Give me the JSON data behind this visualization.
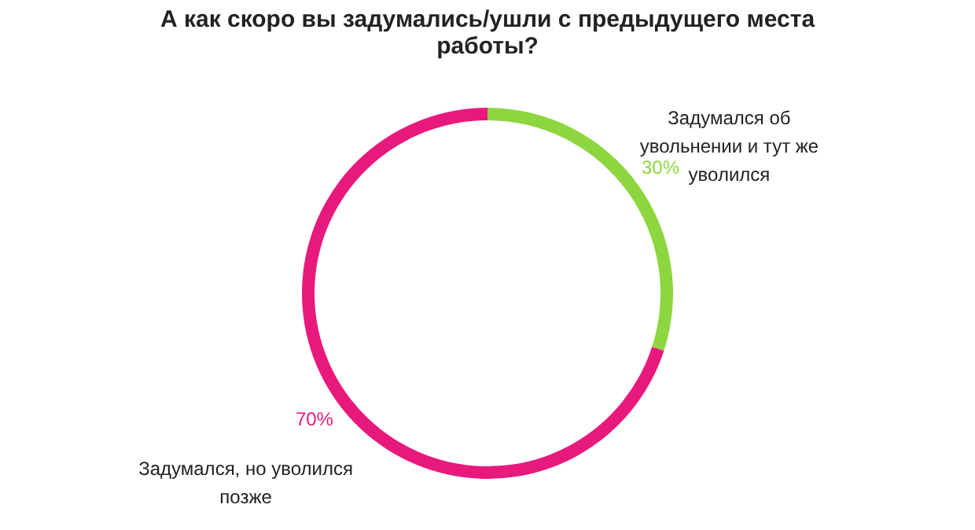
{
  "chart_data": {
    "type": "donut",
    "title": "А как скоро вы задумались/ушли с предыдущего места работы?",
    "categories": [
      "Задумался об увольнении и тут же уволился",
      "Задумался, но уволился позже"
    ],
    "values": [
      30,
      70
    ],
    "colors": [
      "#8dd63f",
      "#e8197d"
    ],
    "value_labels": [
      "30%",
      "70%"
    ],
    "legend": false
  }
}
